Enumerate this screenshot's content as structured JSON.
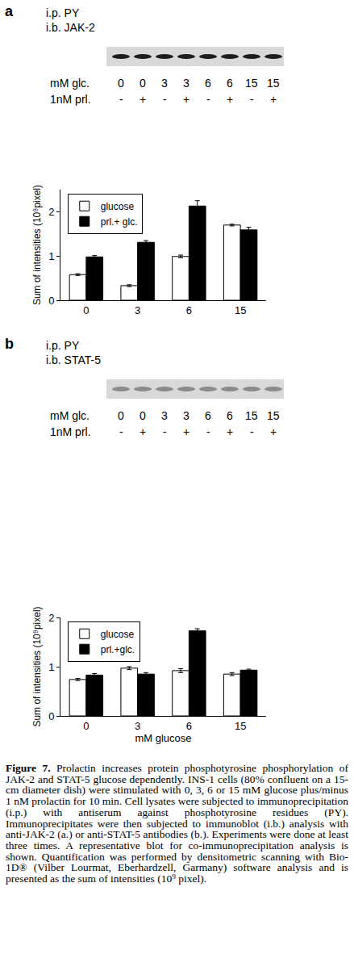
{
  "chart_data": [
    {
      "type": "bar",
      "categories": [
        "0",
        "3",
        "6",
        "15"
      ],
      "y_label": "Sum of intensities (10⁹pixel)",
      "series": [
        {
          "name": "glucose",
          "color": "#ffffff",
          "values": [
            0.58,
            0.33,
            0.99,
            1.7
          ],
          "errors": [
            0.02,
            0.02,
            0.03,
            0.02
          ]
        },
        {
          "name": "prl.+ glc.",
          "color": "#000000",
          "values": [
            0.98,
            1.31,
            2.13,
            1.59
          ],
          "errors": [
            0.03,
            0.04,
            0.12,
            0.06
          ]
        }
      ],
      "ylim": [
        0,
        2.5
      ],
      "yticks": [
        0,
        1,
        2
      ],
      "grid": false,
      "legend": "upper left"
    },
    {
      "type": "bar",
      "categories": [
        "0",
        "3",
        "6",
        "15"
      ],
      "x_label": "mM glucose",
      "y_label": "Sum of intensities (10⁹pixel)",
      "series": [
        {
          "name": "glucose",
          "color": "#ffffff",
          "values": [
            0.74,
            0.97,
            0.92,
            0.85
          ],
          "errors": [
            0.02,
            0.03,
            0.04,
            0.03
          ]
        },
        {
          "name": "prl.+glc.",
          "color": "#000000",
          "values": [
            0.83,
            0.85,
            1.73,
            0.93
          ],
          "errors": [
            0.03,
            0.03,
            0.04,
            0.02
          ]
        }
      ],
      "ylim": [
        0,
        2
      ],
      "yticks": [
        0,
        1,
        2
      ],
      "grid": false,
      "legend": "upper left"
    }
  ],
  "panels": [
    {
      "letter": "a",
      "ip": "i.p. PY",
      "ib": "i.b. JAK-2",
      "glucose_label": "mM glc.",
      "glucose_lanes": [
        "0",
        "0",
        "3",
        "3",
        "6",
        "6",
        "15",
        "15"
      ],
      "prolactin_label": "1nM prl.",
      "prolactin_lanes": [
        "-",
        "+",
        "-",
        "+",
        "-",
        "+",
        "-",
        "+"
      ]
    },
    {
      "letter": "b",
      "ip": "i.p. PY",
      "ib": "i.b. STAT-5",
      "glucose_label": "mM glc.",
      "glucose_lanes": [
        "0",
        "0",
        "3",
        "3",
        "6",
        "6",
        "15",
        "15"
      ],
      "prolactin_label": "1nM prl.",
      "prolactin_lanes": [
        "-",
        "+",
        "-",
        "+",
        "-",
        "+",
        "-",
        "+"
      ]
    }
  ],
  "caption": {
    "label": "Figure 7.",
    "text": "Prolactin increases protein phosphotyrosine phosphorylation of JAK-2 and STAT-5 glucose dependently. INS-1 cells (80% confluent on a 15-cm diameter dish) were stimulated with 0, 3, 6 or 15 mM glucose plus/minus 1 nM prolactin for 10 min. Cell lysates were subjected to immunoprecipitation (i.p.) with antiserum against phosphotyrosine residues (PY). Immunoprecipitates were then subjected to immunoblot (i.b.) analysis with anti-JAK-2 (a.) or anti-STAT-5 antibodies (b.). Experiments were done at least three times. A representative blot for co-immunoprecipitation analysis is shown. Quantification was performed by densitometric scanning with Bio-1D® (Vilber Lourmat, Eberhardzell, Garmany) software analysis and is presented as the sum of intensities (10⁹ pixel)."
  }
}
